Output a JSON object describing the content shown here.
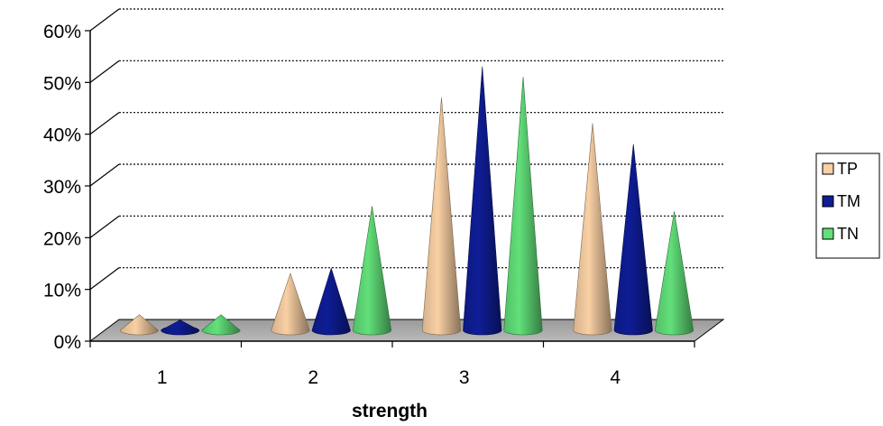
{
  "chart_data": {
    "type": "bar",
    "style": "3d-cone",
    "categories": [
      "1",
      "2",
      "3",
      "4"
    ],
    "xlabel": "strength",
    "ylabel": "",
    "ylim": [
      0,
      60
    ],
    "y_ticks": [
      "0%",
      "10%",
      "20%",
      "30%",
      "40%",
      "50%",
      "60%"
    ],
    "grid": true,
    "legend_position": "right",
    "series": [
      {
        "name": "TP",
        "color": "#f9d0a4",
        "values": [
          3,
          11,
          45,
          40
        ]
      },
      {
        "name": "TM",
        "color": "#0f1d96",
        "values": [
          2,
          12,
          51,
          36
        ]
      },
      {
        "name": "TN",
        "color": "#62e07a",
        "values": [
          3,
          24,
          49,
          23
        ]
      }
    ]
  }
}
